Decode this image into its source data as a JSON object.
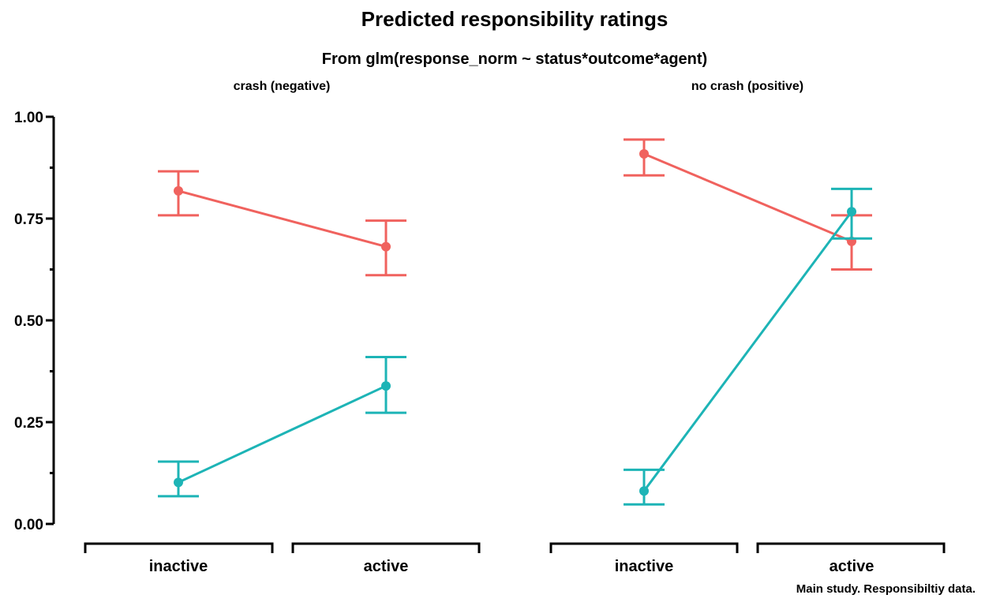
{
  "chart_data": {
    "type": "line",
    "title": "Predicted responsibility ratings",
    "subtitle": "From glm(response_norm ~ status*outcome*agent)",
    "caption": "Main study. Responsibiltiy data.",
    "xlabel": "",
    "ylabel": "",
    "ylim": [
      0,
      1
    ],
    "yticks": [
      "0.00",
      "0.25",
      "0.50",
      "0.75",
      "1.00"
    ],
    "categories": [
      "inactive",
      "active"
    ],
    "grid": false,
    "legend": "none",
    "colors": [
      "#F0625E",
      "#1DB4B6"
    ],
    "panels": [
      {
        "label": "crash (negative)",
        "series": [
          {
            "color": "#F0625E",
            "values": [
              0.818,
              0.681
            ],
            "lower": [
              0.758,
              0.611
            ],
            "upper": [
              0.866,
              0.745
            ]
          },
          {
            "color": "#1DB4B6",
            "values": [
              0.102,
              0.339
            ],
            "lower": [
              0.068,
              0.273
            ],
            "upper": [
              0.153,
              0.41
            ]
          }
        ]
      },
      {
        "label": "no crash (positive)",
        "series": [
          {
            "color": "#F0625E",
            "values": [
              0.909,
              0.694
            ],
            "lower": [
              0.856,
              0.625
            ],
            "upper": [
              0.944,
              0.758
            ]
          },
          {
            "color": "#1DB4B6",
            "values": [
              0.081,
              0.767
            ],
            "lower": [
              0.048,
              0.701
            ],
            "upper": [
              0.133,
              0.823
            ]
          }
        ]
      }
    ]
  }
}
